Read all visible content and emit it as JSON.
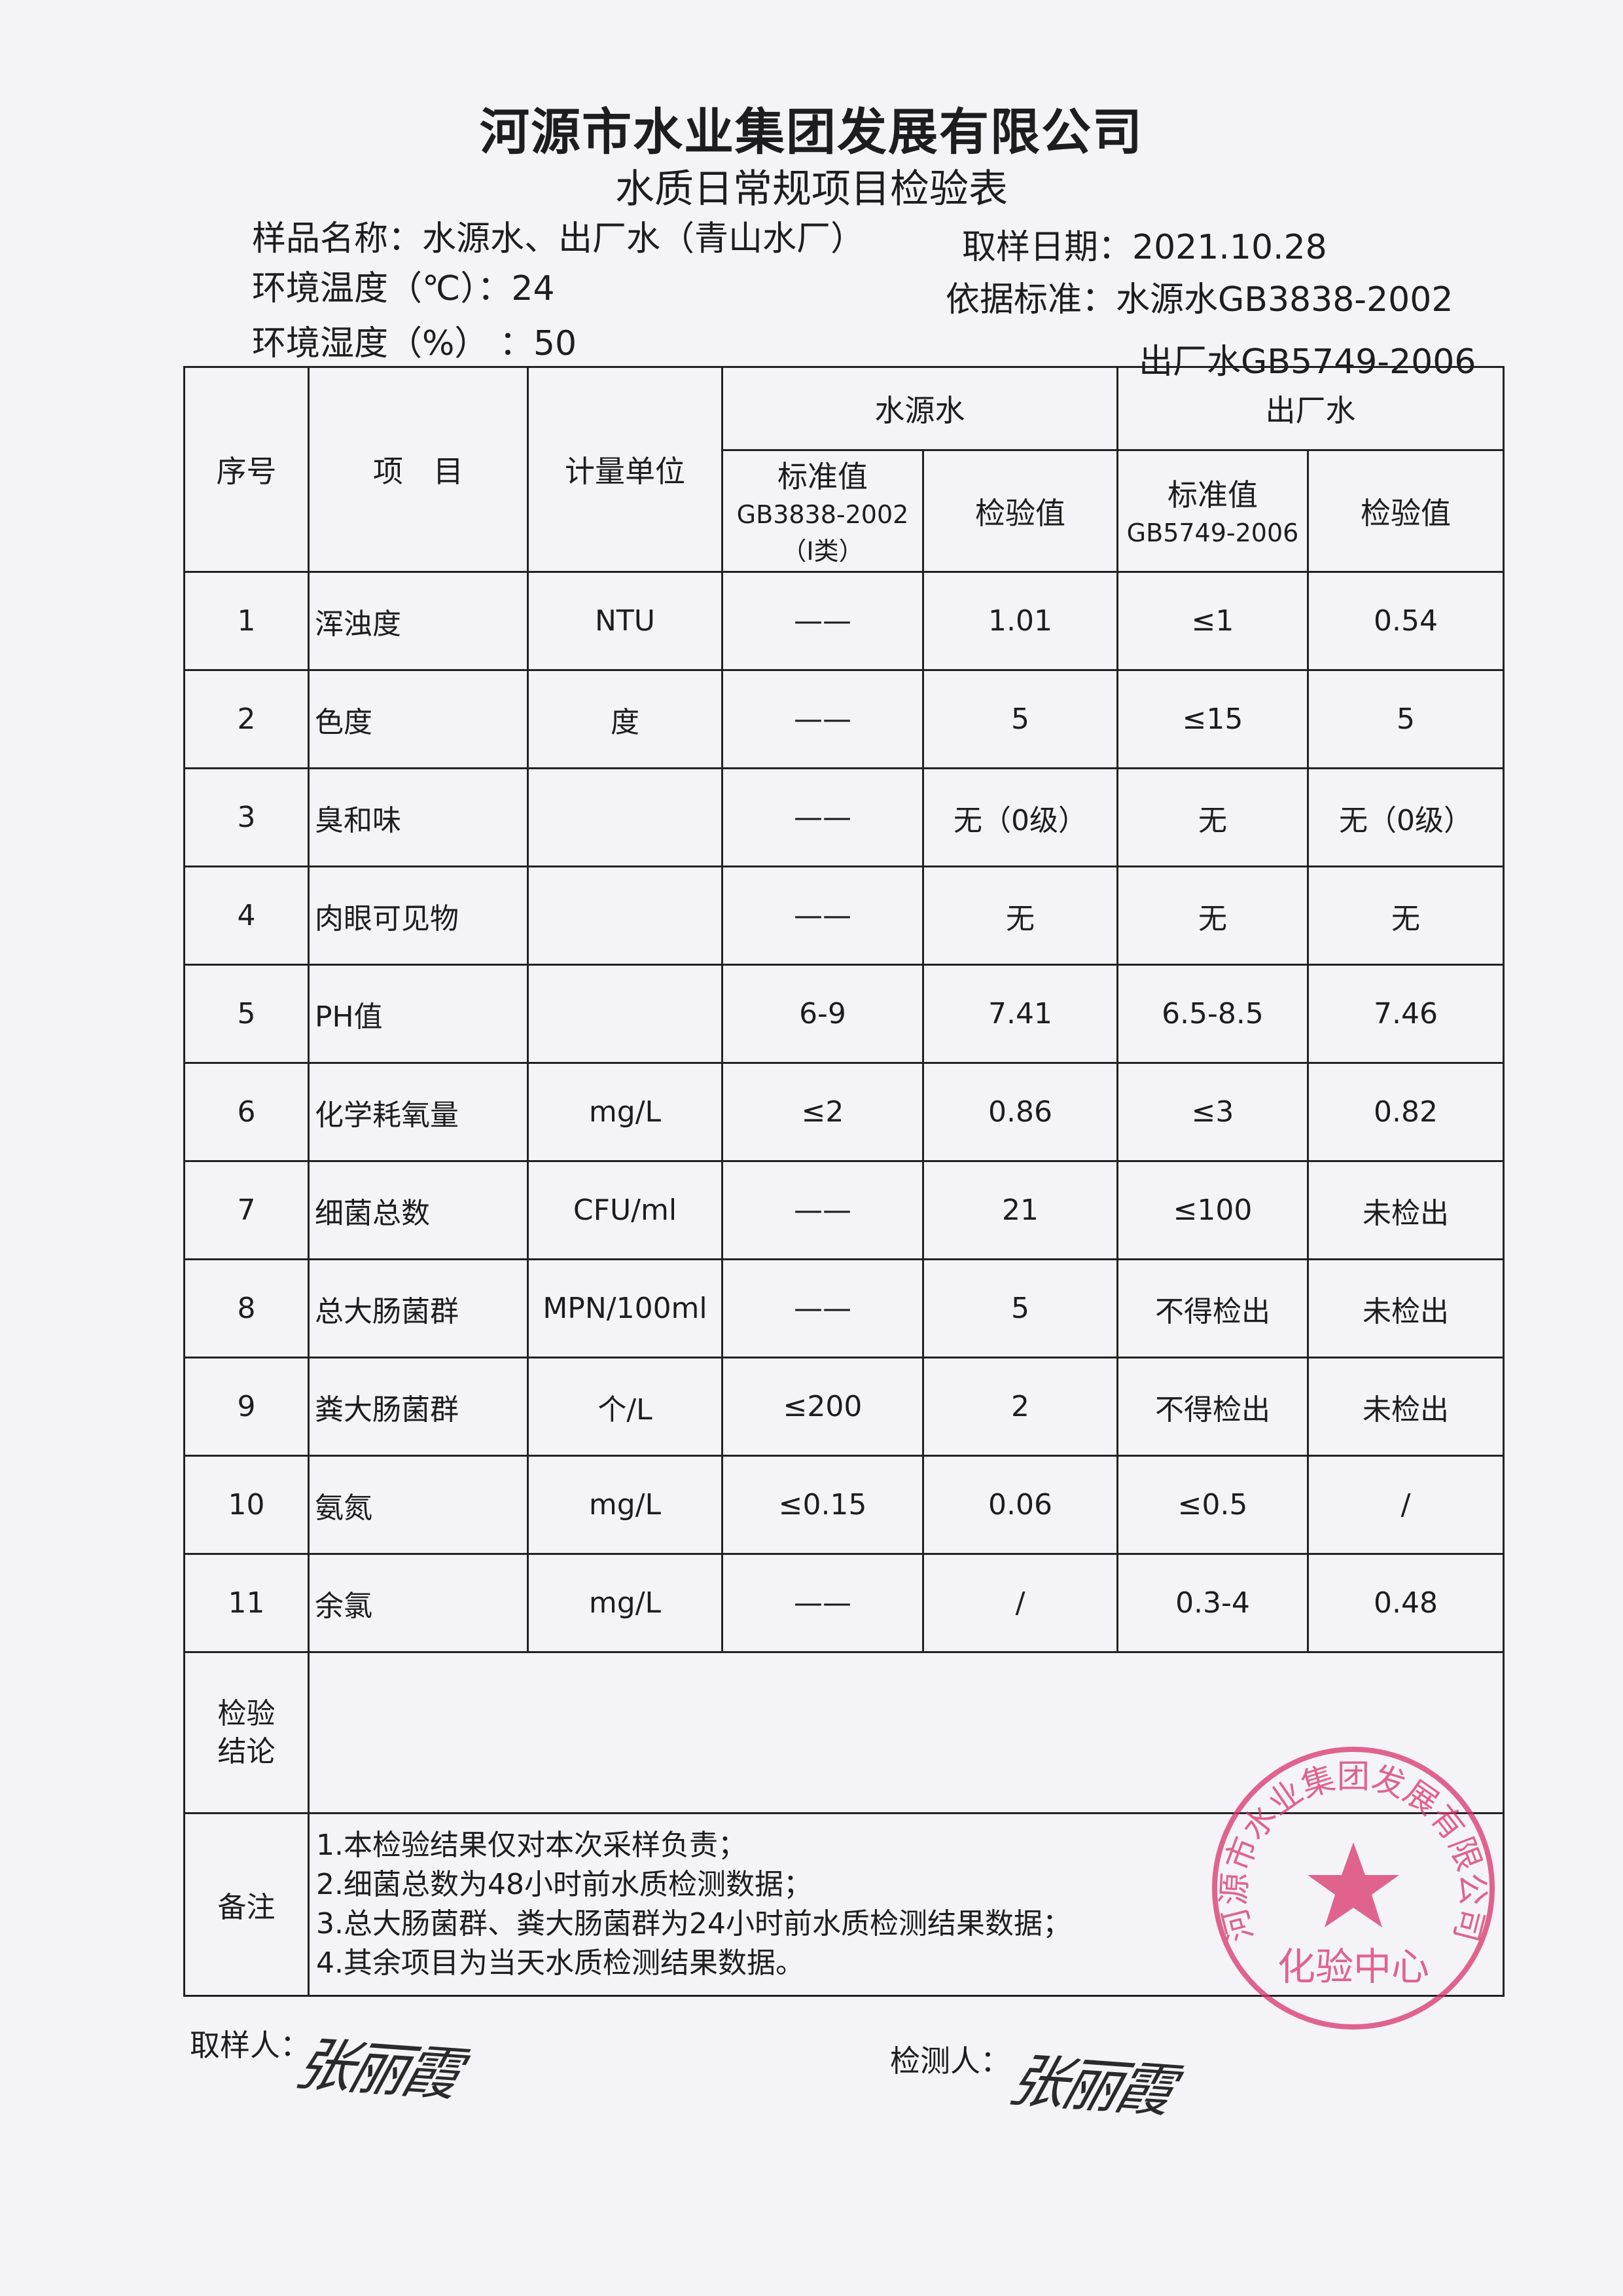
{
  "header": {
    "company": "河源市水业集团发展有限公司",
    "form_title": "水质日常规项目检验表",
    "sample_name": "样品名称：水源水、出厂水（青山水厂）",
    "sample_date": "取样日期：2021.10.28",
    "temperature": "环境温度（℃）：24",
    "humidity": "环境湿度（%）  ：50",
    "standard_1": "依据标准：水源水GB3838-2002",
    "standard_2": "出厂水GB5749-2006"
  },
  "table": {
    "col_no": "序号",
    "col_item": "项　目",
    "col_unit": "计量单位",
    "group_source": "水源水",
    "group_plant": "出厂水",
    "source_std": "标准值",
    "source_std_code": "GB3838-2002",
    "source_std_class": "（Ⅰ类）",
    "source_val": "检验值",
    "plant_std": "标准值",
    "plant_std_code": "GB5749-2006",
    "plant_val": "检验值",
    "rows": [
      [
        "1",
        "浑浊度",
        "NTU",
        "——",
        "1.01",
        "≤1",
        "0.54"
      ],
      [
        "2",
        "色度",
        "度",
        "——",
        "5",
        "≤15",
        "5"
      ],
      [
        "3",
        "臭和味",
        "",
        "——",
        "无（0级）",
        "无",
        "无（0级）"
      ],
      [
        "4",
        "肉眼可见物",
        "",
        "——",
        "无",
        "无",
        "无"
      ],
      [
        "5",
        "PH值",
        "",
        "6-9",
        "7.41",
        "6.5-8.5",
        "7.46"
      ],
      [
        "6",
        "化学耗氧量",
        "mg/L",
        "≤2",
        "0.86",
        "≤3",
        "0.82"
      ],
      [
        "7",
        "细菌总数",
        "CFU/ml",
        "——",
        "21",
        "≤100",
        "未检出"
      ],
      [
        "8",
        "总大肠菌群",
        "MPN/100ml",
        "——",
        "5",
        "不得检出",
        "未检出"
      ],
      [
        "9",
        "粪大肠菌群",
        "个/L",
        "≤200",
        "2",
        "不得检出",
        "未检出"
      ],
      [
        "10",
        "氨氮",
        "mg/L",
        "≤0.15",
        "0.06",
        "≤0.5",
        "/"
      ],
      [
        "11",
        "余氯",
        "mg/L",
        "——",
        "/",
        "0.3-4",
        "0.48"
      ]
    ],
    "conclusion_label": "检验结论",
    "conclusion_value": "",
    "remarks_label": "备注",
    "remarks": [
      "1.本检验结果仅对本次采样负责；",
      "2.细菌总数为48小时前水质检测数据；",
      "3.总大肠菌群、粪大肠菌群为24小时前水质检测结果数据；",
      "4.其余项目为当天水质检测结果数据。"
    ]
  },
  "stamp": {
    "ring_text": "河源市水业集团发展有限公司",
    "center_text": "化验中心",
    "color": "#d8336a"
  },
  "footer": {
    "sampler_label": "取样人：",
    "tester_label": "检测人：",
    "sampler_signature": "张丽霞",
    "tester_signature": "张丽霞"
  }
}
